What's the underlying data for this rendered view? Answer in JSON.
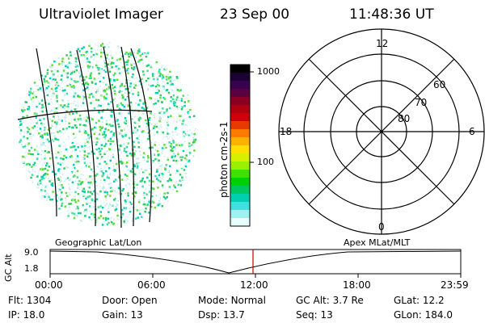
{
  "header": {
    "title": "Ultraviolet Imager",
    "date": "23 Sep 00",
    "time": "11:48:36 UT"
  },
  "colorbar": {
    "unit_label": "photon cm-2s-1",
    "ticks": [
      "1000",
      "100"
    ],
    "colors": [
      "#000000",
      "#1a0033",
      "#3a0050",
      "#5a0040",
      "#8a0020",
      "#b00010",
      "#d00008",
      "#e83a00",
      "#ff7a00",
      "#ffb000",
      "#ffe000",
      "#d8f000",
      "#9af000",
      "#40e000",
      "#00d000",
      "#00c860",
      "#00d0b0",
      "#40e0e0",
      "#a0f0f0",
      "#e8ffff"
    ]
  },
  "polar": {
    "ring_labels": [
      "60",
      "70",
      "80"
    ],
    "mlt_labels": {
      "top": "12",
      "left": "18",
      "right": "6",
      "bottom": "0"
    }
  },
  "strip": {
    "left_label": "Geographic Lat/Lon",
    "right_label": "Apex MLat/MLT",
    "axis_label": "GC Alt",
    "y_ticks": [
      "9.0",
      "1.8"
    ],
    "x_ticks": [
      "00:00",
      "06:00",
      "12:00",
      "18:00",
      "23:59"
    ]
  },
  "info": [
    {
      "key": "Flt:",
      "value": "1304"
    },
    {
      "key": "IP:",
      "value": "18.0"
    },
    {
      "key": "Door:",
      "value": "Open"
    },
    {
      "key": "Gain:",
      "value": "13"
    },
    {
      "key": "Mode:",
      "value": "Normal"
    },
    {
      "key": "Dsp:",
      "value": "13.7"
    },
    {
      "key": "GC Alt:",
      "value": "3.7 Re"
    },
    {
      "key": "Seq:",
      "value": "13"
    },
    {
      "key": "GLat:",
      "value": "12.2"
    },
    {
      "key": "GLon:",
      "value": "184.0"
    }
  ]
}
